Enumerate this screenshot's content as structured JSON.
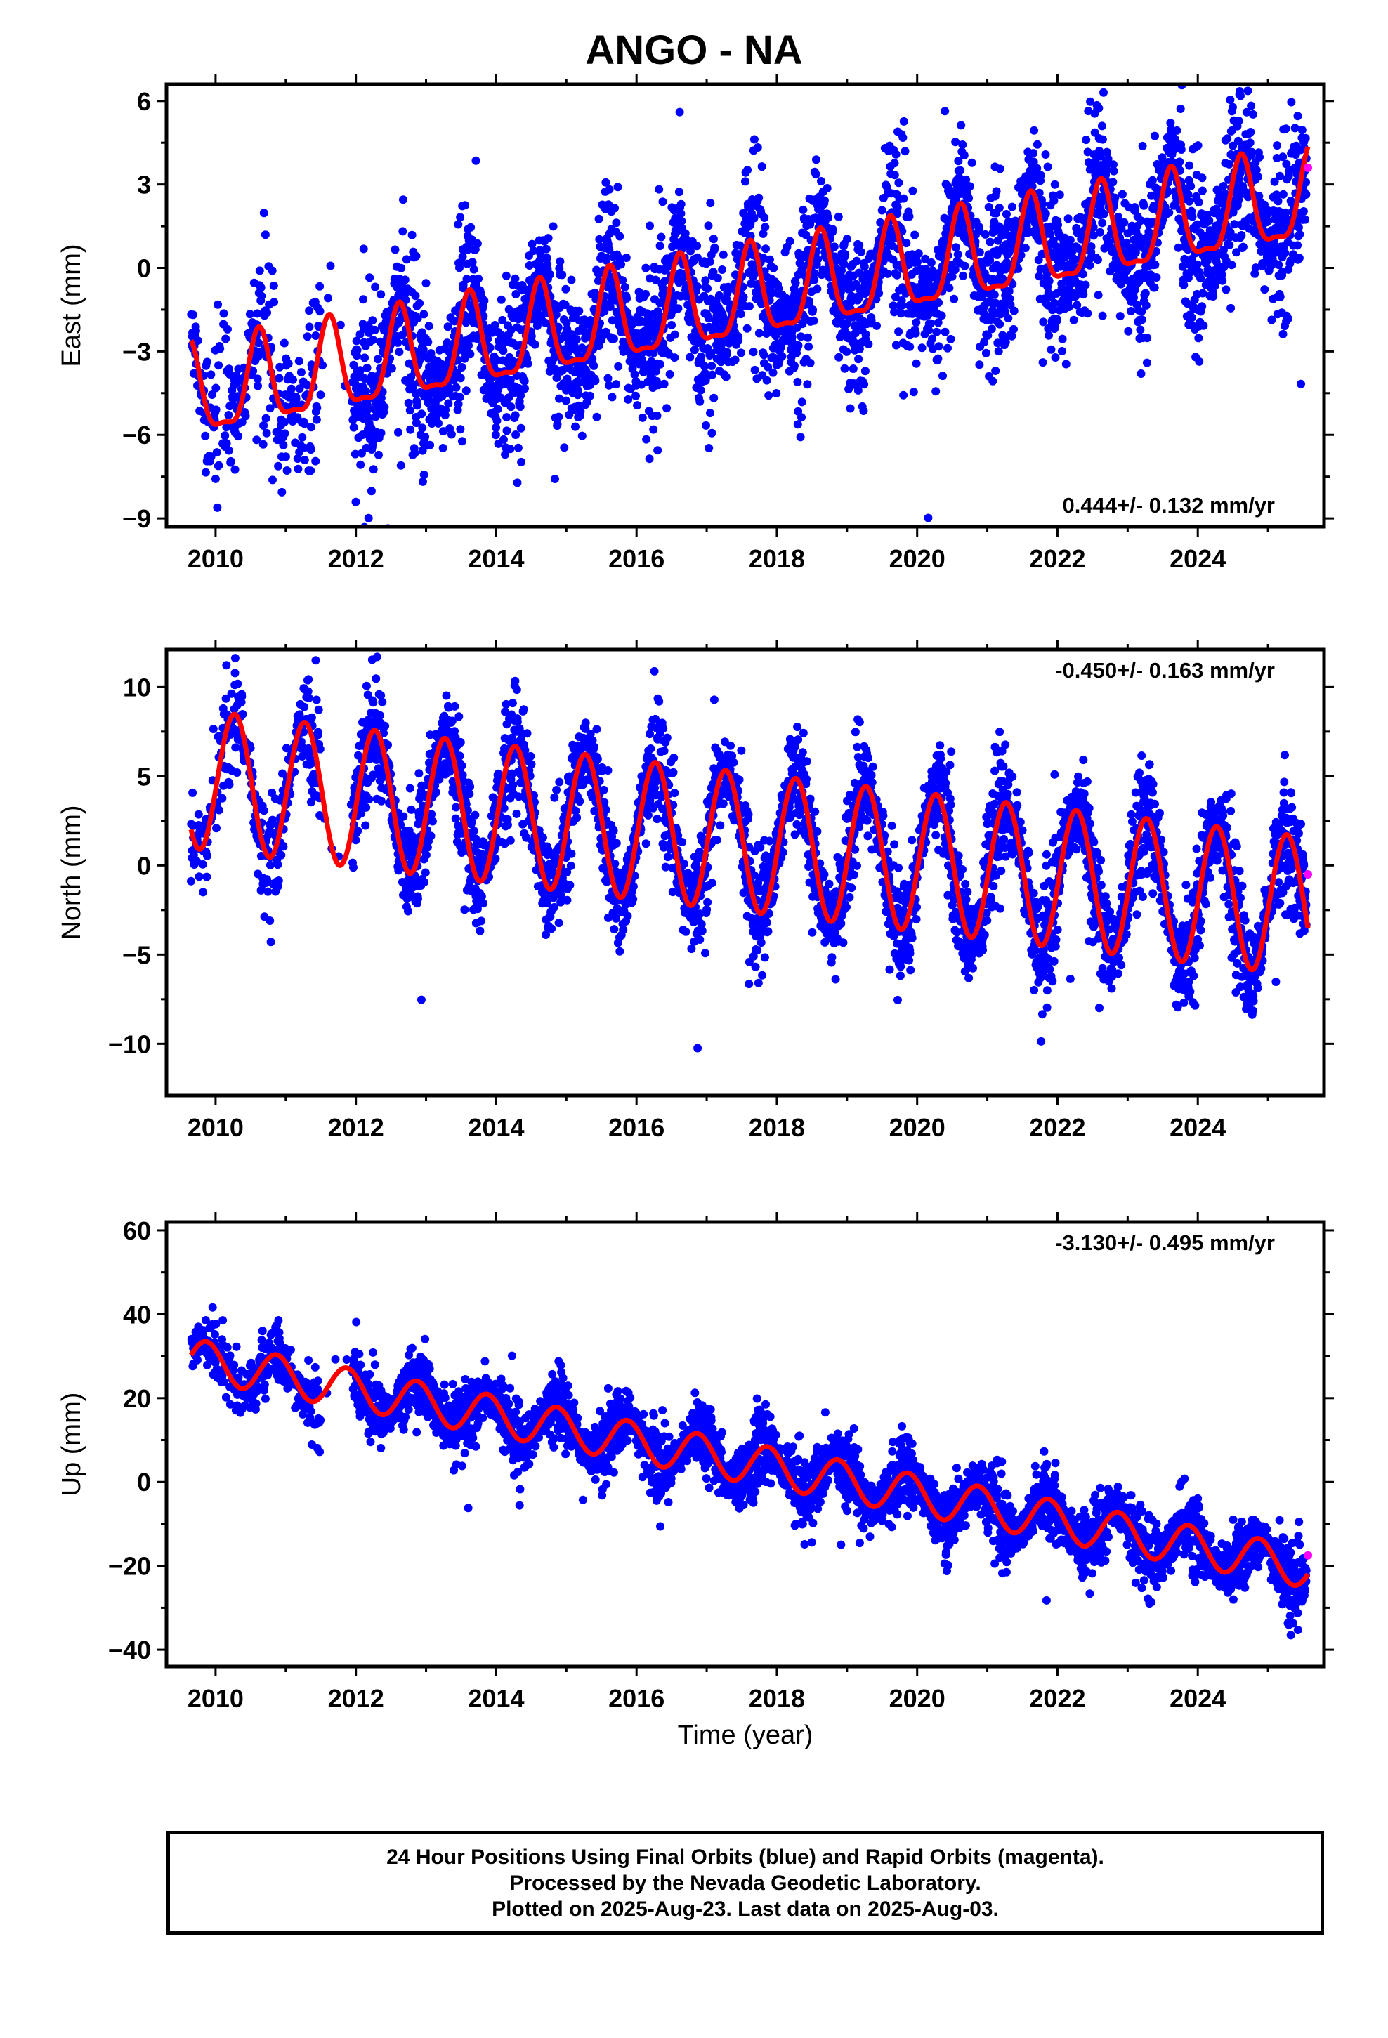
{
  "title": "ANGO - NA",
  "colors": {
    "final": "#0000ff",
    "rapid": "#ff00ff",
    "model": "#ff0000",
    "frame": "#000000"
  },
  "chart_data": [
    {
      "type": "scatter",
      "name": "east",
      "ylabel": "East (mm)",
      "xlim": [
        2009.3,
        2025.8
      ],
      "ylim": [
        -9.3,
        6.6
      ],
      "xticks": [
        2010,
        2012,
        2014,
        2016,
        2018,
        2020,
        2022,
        2024
      ],
      "yticks": [
        -9,
        -6,
        -3,
        0,
        3,
        6
      ],
      "rate_label": "0.444+/- 0.132 mm/yr",
      "rate_label_pos": "bottom-right",
      "trend": {
        "rate": 0.444,
        "offset": -3.6,
        "t0": 2012.0,
        "annual_amp": 1.6,
        "phase": 0.62,
        "semiannual_amp": 0.5
      },
      "data_range": [
        2009.65,
        2025.55
      ],
      "scatter_sigma": 1.3,
      "rapid_points": [
        {
          "x": 2025.57,
          "y": 3.6
        }
      ]
    },
    {
      "type": "scatter",
      "name": "north",
      "ylabel": "North (mm)",
      "xlim": [
        2009.3,
        2025.8
      ],
      "ylim": [
        -12.9,
        12.1
      ],
      "xticks": [
        2010,
        2012,
        2014,
        2016,
        2018,
        2020,
        2022,
        2024
      ],
      "yticks": [
        -10,
        -5,
        0,
        5,
        10
      ],
      "rate_label": "-0.450+/- 0.163 mm/yr",
      "rate_label_pos": "top-right",
      "trend": {
        "rate": -0.45,
        "offset": 3.8,
        "t0": 2012.0,
        "annual_amp": 3.9,
        "phase": 0.27,
        "semiannual_amp": 0.0
      },
      "data_range": [
        2009.65,
        2025.55
      ],
      "scatter_sigma": 1.4,
      "rapid_points": [
        {
          "x": 2025.57,
          "y": -0.5
        }
      ]
    },
    {
      "type": "scatter",
      "name": "up",
      "ylabel": "Up (mm)",
      "xlabel": "Time (year)",
      "xlim": [
        2009.3,
        2025.8
      ],
      "ylim": [
        -44,
        62
      ],
      "xticks": [
        2010,
        2012,
        2014,
        2016,
        2018,
        2020,
        2022,
        2024
      ],
      "yticks": [
        -40,
        -20,
        0,
        20,
        40,
        60
      ],
      "rate_label": "-3.130+/- 0.495 mm/yr",
      "rate_label_pos": "top-right",
      "trend": {
        "rate": -3.13,
        "offset": 22.0,
        "t0": 2012.0,
        "annual_amp": 4.8,
        "phase": 0.87,
        "semiannual_amp": 0.0
      },
      "data_range": [
        2009.65,
        2025.55
      ],
      "scatter_sigma": 3.6,
      "rapid_points": [
        {
          "x": 2025.57,
          "y": -17.5
        }
      ]
    }
  ],
  "caption": {
    "line1": "24 Hour Positions Using Final Orbits (blue) and Rapid Orbits (magenta).",
    "line2": "Processed by the Nevada Geodetic Laboratory.",
    "line3": "Plotted on 2025-Aug-23. Last data on 2025-Aug-03."
  }
}
